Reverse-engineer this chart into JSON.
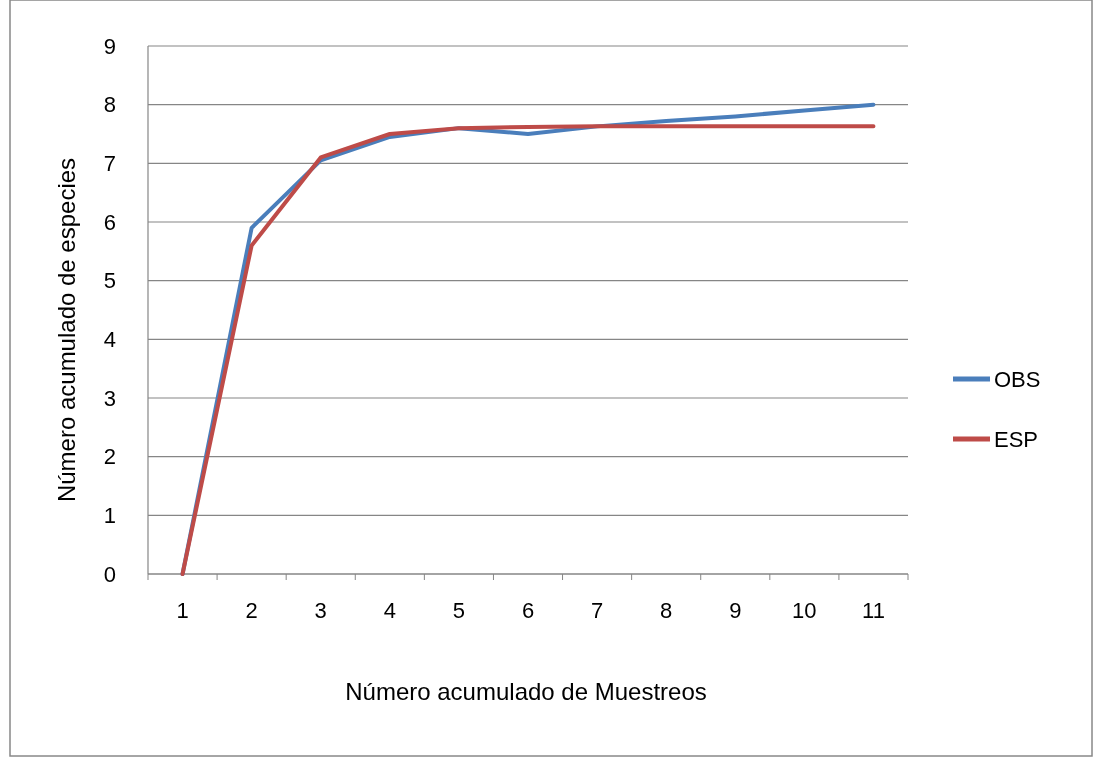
{
  "chart_data": {
    "type": "line",
    "xlabel": "Número acumulado de Muestreos",
    "ylabel": "Número acumulado de especies",
    "categories": [
      "1",
      "2",
      "3",
      "4",
      "5",
      "6",
      "7",
      "8",
      "9",
      "10",
      "11"
    ],
    "series": [
      {
        "name": "OBS",
        "color": "#4a7ebb",
        "values": [
          0,
          5.9,
          7.05,
          7.45,
          7.6,
          7.5,
          7.63,
          7.72,
          7.8,
          7.9,
          8.0
        ]
      },
      {
        "name": "ESP",
        "color": "#be4b48",
        "values": [
          0,
          5.6,
          7.1,
          7.5,
          7.6,
          7.62,
          7.63,
          7.63,
          7.63,
          7.63,
          7.63
        ]
      }
    ],
    "ylim": [
      0,
      9
    ],
    "yticks": [
      0,
      1,
      2,
      3,
      4,
      5,
      6,
      7,
      8,
      9
    ],
    "grid": "y",
    "legend": "right",
    "marker": "none",
    "line_style": "solid"
  }
}
